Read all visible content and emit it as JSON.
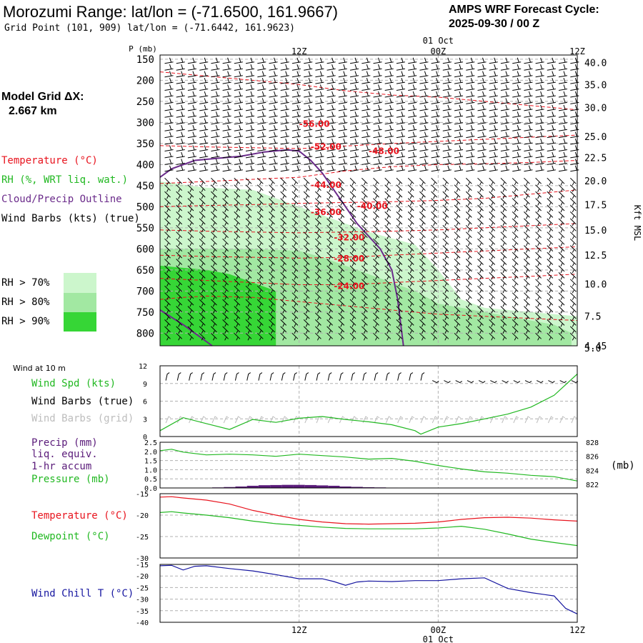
{
  "header": {
    "title": "Morozumi Range:  lat/lon = (-71.6500, 161.9667)",
    "subtitle": "Grid Point (101, 909) lat/lon = (-71.6442, 161.9623)",
    "cycle_line1": "AMPS WRF Forecast Cycle:",
    "cycle_line2": "2025-09-30 / 00  Z",
    "grid_label": "Model Grid ΔX:",
    "grid_value": "2.667 km"
  },
  "colors": {
    "temperature": "#e8141e",
    "rh": "#21b821",
    "cloud": "#6a2a8a",
    "precip": "#5a1b7a",
    "windchill": "#1616a0",
    "grid_gray": "#aaaaaa",
    "rh70": "#ccf6cc",
    "rh80": "#a2e8a2",
    "rh90": "#36d636"
  },
  "chart_data": [
    {
      "type": "line",
      "name": "upper-air-cross-section",
      "y_label": "P (mb)",
      "y_ticks": [
        "150",
        "200",
        "250",
        "300",
        "350",
        "400",
        "450",
        "500",
        "550",
        "600",
        "650",
        "700",
        "750",
        "800"
      ],
      "y_ticks_num": [
        150,
        200,
        250,
        300,
        350,
        400,
        450,
        500,
        550,
        600,
        650,
        700,
        750,
        800
      ],
      "right_ticks": [
        "40.0",
        "35.0",
        "30.0",
        "25.0",
        "22.5",
        "20.0",
        "17.5",
        "15.0",
        "12.5",
        "10.0",
        "7.5",
        "5.0"
      ],
      "right_ticks_p": [
        158,
        210,
        265,
        333,
        383,
        438,
        495,
        555,
        615,
        683,
        760,
        835
      ],
      "right_bottom_tick": "4.45",
      "right_axis_label": "Kft MSL",
      "top_times": [
        "12Z",
        "00Z",
        "12Z"
      ],
      "top_date": "01 Oct",
      "time_range_h": [
        0,
        36
      ],
      "legend": {
        "temperature": "Temperature (°C)",
        "rh": "RH (%, WRT liq. wat.)",
        "cloud": "Cloud/Precip Outline",
        "wind": "Wind Barbs (kts) (true)",
        "rh70": "RH > 70%",
        "rh80": "RH > 80%",
        "rh90": "RH > 90%"
      },
      "temperature_labels": [
        "-56.00",
        "-52.00",
        "-48.00",
        "-44.00",
        "-40.00",
        "-36.00",
        "-32.00",
        "-28.00",
        "-24.00"
      ],
      "temperature_label_pos": [
        [
          12,
          310
        ],
        [
          13,
          365
        ],
        [
          18,
          375
        ],
        [
          13,
          455
        ],
        [
          17,
          505
        ],
        [
          13,
          520
        ],
        [
          15,
          580
        ],
        [
          15,
          630
        ],
        [
          15,
          695
        ]
      ],
      "isotherms": [
        {
          "h": [
            0,
            4,
            8,
            12,
            16,
            20,
            24,
            28,
            32,
            36
          ],
          "p": [
            180,
            190,
            200,
            210,
            225,
            235,
            240,
            250,
            260,
            270
          ]
        },
        {
          "h": [
            0,
            4,
            8,
            12,
            14,
            16,
            20,
            24,
            28,
            32,
            36
          ],
          "p": [
            355,
            358,
            360,
            362,
            360,
            356,
            350,
            345,
            340,
            335,
            330
          ]
        },
        {
          "h": [
            0,
            4,
            8,
            12,
            16,
            20,
            24,
            28,
            32,
            36
          ],
          "p": [
            445,
            440,
            435,
            430,
            415,
            405,
            400,
            398,
            395,
            390
          ]
        },
        {
          "h": [
            0,
            4,
            8,
            12,
            16,
            20,
            24,
            28,
            32,
            36
          ],
          "p": [
            500,
            497,
            495,
            492,
            490,
            488,
            485,
            480,
            470,
            460
          ]
        },
        {
          "h": [
            0,
            4,
            8,
            12,
            16,
            20,
            24,
            28,
            32,
            36
          ],
          "p": [
            555,
            558,
            560,
            562,
            560,
            558,
            555,
            550,
            545,
            540
          ]
        },
        {
          "h": [
            0,
            4,
            8,
            12,
            16,
            20,
            24,
            28,
            32,
            36
          ],
          "p": [
            615,
            618,
            620,
            622,
            620,
            615,
            610,
            605,
            600,
            595
          ]
        },
        {
          "h": [
            0,
            4,
            8,
            12,
            16,
            20,
            24,
            28,
            32,
            36
          ],
          "p": [
            670,
            675,
            680,
            685,
            685,
            680,
            675,
            670,
            665,
            660
          ]
        },
        {
          "h": [
            0,
            2,
            4,
            8,
            12,
            16,
            20,
            24,
            28,
            32,
            36
          ],
          "p": [
            720,
            715,
            712,
            715,
            725,
            735,
            745,
            755,
            760,
            765,
            770
          ]
        }
      ],
      "rh70_region": {
        "h": [
          0,
          4,
          8,
          10,
          12,
          14,
          16,
          18,
          20,
          22,
          24,
          26,
          28,
          30,
          32,
          34,
          36,
          36,
          0
        ],
        "p": [
          440,
          455,
          460,
          480,
          500,
          520,
          540,
          560,
          575,
          590,
          650,
          720,
          740,
          745,
          750,
          755,
          760,
          830,
          830
        ]
      },
      "rh80_region": {
        "h": [
          0,
          4,
          8,
          12,
          14,
          16,
          18,
          20,
          22,
          24,
          26,
          28,
          30,
          32,
          34,
          35.5,
          35.5,
          0
        ],
        "p": [
          600,
          600,
          600,
          605,
          620,
          640,
          660,
          680,
          700,
          730,
          740,
          750,
          760,
          770,
          780,
          800,
          830,
          830
        ]
      },
      "rh90_region": {
        "h": [
          0,
          2,
          4,
          6,
          8,
          10,
          10,
          0
        ],
        "p": [
          640,
          645,
          650,
          660,
          680,
          700,
          830,
          830
        ]
      },
      "cloud_outline": [
        {
          "h": [
            0,
            1,
            3,
            5,
            7,
            9,
            11,
            12,
            13,
            14,
            15,
            16,
            17,
            18,
            19,
            20,
            20.5,
            21
          ],
          "p": [
            430,
            410,
            390,
            385,
            380,
            370,
            365,
            368,
            390,
            420,
            460,
            500,
            540,
            570,
            600,
            650,
            720,
            830
          ]
        },
        {
          "h": [
            0,
            2,
            3,
            4.5
          ],
          "p": [
            745,
            780,
            800,
            830
          ]
        }
      ],
      "wind_stride": [
        2,
        50
      ]
    },
    {
      "type": "line",
      "name": "surface-wind",
      "title": "Wind at 10 m",
      "legend_speed": "Wind Spd (kts)",
      "legend_true": "Wind Barbs (true)",
      "legend_grid": "Wind Barbs (grid)",
      "y_ticks": [
        "12",
        "9",
        "6",
        "3",
        "0"
      ],
      "y_ticks_num": [
        12,
        9,
        6,
        3,
        0
      ],
      "ylim": [
        0,
        12
      ],
      "hours": [
        0,
        2,
        4,
        6,
        8,
        10,
        12,
        14,
        16,
        18,
        20,
        22,
        22.5,
        24,
        26,
        28,
        30,
        32,
        34,
        36
      ],
      "values": [
        1.0,
        3.2,
        2.2,
        1.2,
        2.9,
        2.4,
        3.1,
        3.4,
        2.9,
        2.5,
        2.0,
        1.0,
        0.4,
        1.6,
        2.2,
        3.0,
        3.8,
        5.0,
        7.0,
        10.6
      ]
    },
    {
      "type": "line",
      "name": "precip-pressure",
      "legend_precip": "Precip (mm)",
      "legend_equiv": "liq. equiv.",
      "legend_accum": "1-hr accum",
      "legend_pressure": "Pressure (mb)",
      "right_unit": "(mb)",
      "y_ticks": [
        "2.5",
        "2.0",
        "1.5",
        "1.0",
        "0.5",
        "0.0"
      ],
      "y_ticks_num": [
        2.5,
        2.0,
        1.5,
        1.0,
        0.5,
        0.0
      ],
      "ylim": [
        0,
        2.5
      ],
      "right_ticks": [
        "828",
        "826",
        "824",
        "822"
      ],
      "right_ticks_num": [
        828,
        826,
        824,
        822
      ],
      "pressure_lim": [
        821.5,
        828
      ],
      "precip_hours": [
        5,
        6,
        7,
        8,
        9,
        10,
        11,
        12,
        13,
        14,
        15,
        16,
        17,
        18,
        19,
        20
      ],
      "precip_values": [
        0.03,
        0.05,
        0.08,
        0.12,
        0.15,
        0.16,
        0.17,
        0.17,
        0.16,
        0.14,
        0.12,
        0.08,
        0.06,
        0.04,
        0.03,
        0.02
      ],
      "pressure_hours": [
        0,
        1,
        2,
        3,
        4,
        6,
        8,
        10,
        12,
        14,
        16,
        18,
        20,
        22,
        24,
        26,
        28,
        30,
        32,
        34,
        36
      ],
      "pressure_values": [
        826.8,
        827.0,
        826.6,
        826.4,
        826.2,
        826.3,
        826.2,
        826.0,
        826.3,
        826.1,
        825.9,
        825.6,
        825.7,
        825.3,
        824.7,
        824.2,
        823.8,
        823.6,
        823.3,
        823.1,
        822.5
      ]
    },
    {
      "type": "line",
      "name": "temperature-dewpoint",
      "legend_temp": "Temperature (°C)",
      "legend_dew": "Dewpoint (°C)",
      "y_ticks": [
        "-15",
        "-20",
        "-25",
        "-30"
      ],
      "y_ticks_num": [
        -15,
        -20,
        -25,
        -30
      ],
      "ylim": [
        -30,
        -15
      ],
      "hours": [
        0,
        1,
        2,
        4,
        6,
        8,
        10,
        12,
        14,
        16,
        18,
        20,
        22,
        24,
        26,
        28,
        30,
        32,
        34,
        36
      ],
      "temperature": [
        -15.8,
        -15.7,
        -16.0,
        -16.5,
        -17.4,
        -18.9,
        -20.0,
        -21.0,
        -21.6,
        -22.0,
        -22.1,
        -22.0,
        -21.9,
        -21.6,
        -21.0,
        -20.6,
        -20.5,
        -20.7,
        -21.1,
        -21.4
      ],
      "dewpoint": [
        -19.4,
        -19.2,
        -19.5,
        -20.0,
        -20.6,
        -21.4,
        -22.0,
        -22.4,
        -22.8,
        -23.1,
        -23.2,
        -23.2,
        -23.2,
        -23.0,
        -22.6,
        -23.3,
        -24.4,
        -25.6,
        -26.4,
        -27.1
      ]
    },
    {
      "type": "line",
      "name": "wind-chill",
      "legend": "Wind Chill T (°C)",
      "y_ticks": [
        "-15",
        "-20",
        "-25",
        "-30",
        "-35",
        "-40"
      ],
      "y_ticks_num": [
        -15,
        -20,
        -25,
        -30,
        -35,
        -40
      ],
      "ylim": [
        -40,
        -15
      ],
      "bottom_times": [
        "12Z",
        "00Z",
        "12Z"
      ],
      "bottom_date": "01 Oct",
      "hours": [
        0,
        1,
        2,
        3,
        4,
        6,
        8,
        10,
        12,
        14,
        15,
        16,
        17,
        18,
        20,
        22,
        24,
        26,
        28,
        30,
        32,
        34,
        35,
        36
      ],
      "values": [
        -15.6,
        -15.4,
        -17.4,
        -15.8,
        -15.6,
        -16.8,
        -17.8,
        -19.4,
        -21.2,
        -21.2,
        -22.4,
        -24.0,
        -22.6,
        -22.2,
        -22.4,
        -22.0,
        -22.0,
        -21.2,
        -20.8,
        -25.4,
        -27.2,
        -28.6,
        -34.0,
        -36.4
      ]
    }
  ]
}
